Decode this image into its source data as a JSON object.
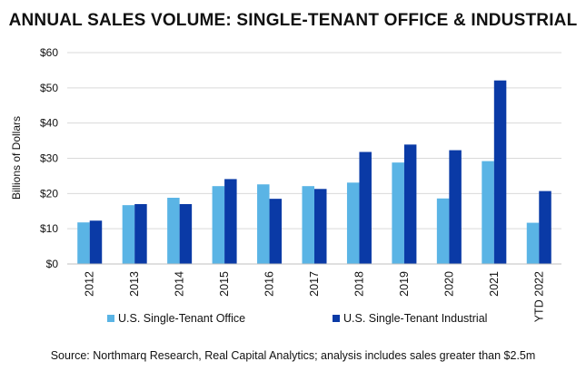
{
  "chart_data": {
    "type": "bar",
    "title": "ANNUAL SALES VOLUME: SINGLE-TENANT OFFICE & INDUSTRIAL",
    "ylabel": "Billions of Dollars",
    "xlabel": "",
    "ylim": [
      0,
      60
    ],
    "yticks": [
      0,
      10,
      20,
      30,
      40,
      50,
      60
    ],
    "ytick_labels": [
      "$0",
      "$10",
      "$20",
      "$30",
      "$40",
      "$50",
      "$60"
    ],
    "grid": true,
    "legend_position": "bottom",
    "categories": [
      "2012",
      "2013",
      "2014",
      "2015",
      "2016",
      "2017",
      "2018",
      "2019",
      "2020",
      "2021",
      "YTD 2022"
    ],
    "series": [
      {
        "name": "U.S. Single-Tenant Office",
        "color": "#5ab4e5",
        "values": [
          11.8,
          16.7,
          18.8,
          22.1,
          22.6,
          22.1,
          23.1,
          28.8,
          18.6,
          29.2,
          11.7
        ]
      },
      {
        "name": "U.S. Single-Tenant Industrial",
        "color": "#0a3aa6",
        "values": [
          12.3,
          17.0,
          17.0,
          24.1,
          18.5,
          21.3,
          31.8,
          33.9,
          32.3,
          52.1,
          20.7
        ]
      }
    ],
    "source": "Source: Northmarq Research, Real Capital Analytics; analysis includes sales greater than $2.5m"
  }
}
